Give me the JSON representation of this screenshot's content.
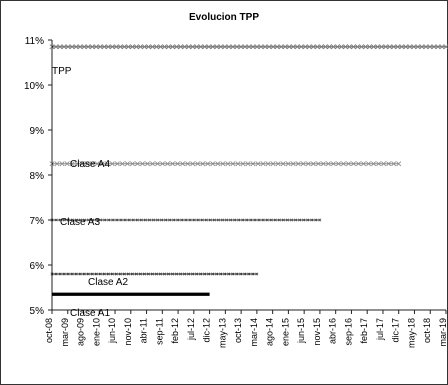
{
  "chart_data": {
    "type": "line",
    "title": "Evolucion TPP",
    "xlabel": "",
    "ylabel": "",
    "ylim": [
      5,
      11
    ],
    "y_ticks": [
      "11%",
      "10%",
      "9%",
      "8%",
      "7%",
      "6%",
      "5%"
    ],
    "x_tick_labels": [
      "oct-08",
      "mar-09",
      "ago-09",
      "ene-10",
      "jun-10",
      "nov-10",
      "abr-11",
      "sep-11",
      "feb-12",
      "jul-12",
      "dic-12",
      "may-13",
      "oct-13",
      "mar-14",
      "ago-14",
      "ene-15",
      "jun-15",
      "nov-15",
      "abr-16",
      "sep-16",
      "feb-17",
      "jul-17",
      "dic-17",
      "may-18",
      "oct-18",
      "mar-19"
    ],
    "series": [
      {
        "name": "TPP",
        "x": [
          "oct-08",
          "mar-19"
        ],
        "values": [
          10.85,
          10.85
        ],
        "color": "#7b7b7b",
        "style": "dense-markers"
      },
      {
        "name": "Clase A4",
        "x": [
          "oct-08",
          "dic-17"
        ],
        "values": [
          8.25,
          8.25
        ],
        "color": "#8b8b8b",
        "style": "markers"
      },
      {
        "name": "Clase A3",
        "x": [
          "oct-08",
          "nov-15"
        ],
        "values": [
          7.0,
          7.0
        ],
        "color": "#444444",
        "style": "small-markers"
      },
      {
        "name": "Clase A2",
        "x": [
          "oct-08",
          "mar-14"
        ],
        "values": [
          5.8,
          5.8
        ],
        "color": "#333333",
        "style": "small-markers"
      },
      {
        "name": "Clase A1",
        "x": [
          "oct-08",
          "dic-12"
        ],
        "values": [
          5.35,
          5.35
        ],
        "color": "#000000",
        "style": "thick-solid"
      }
    ],
    "grid": false,
    "legend": "none"
  }
}
